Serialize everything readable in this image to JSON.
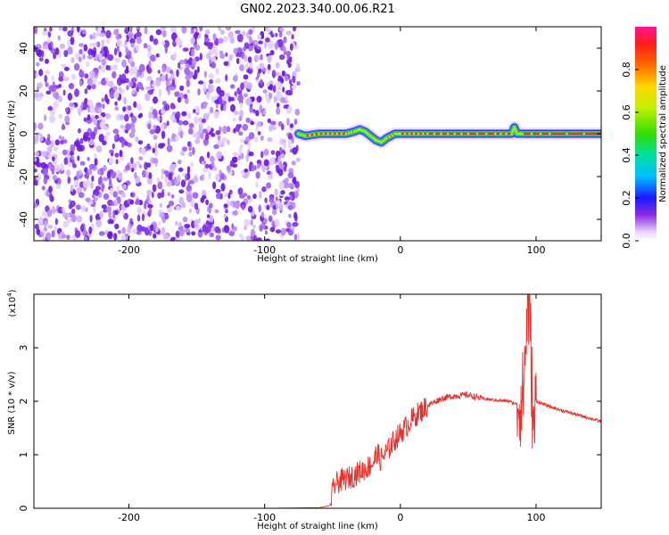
{
  "title": "GN02.2023.340.00.06.R21",
  "chart_data": [
    {
      "type": "heatmap",
      "xlabel": "Height of straight line (km)",
      "ylabel": "Frequency (Hz)",
      "xlim": [
        -270,
        148
      ],
      "ylim": [
        -50,
        50
      ],
      "xticks": [
        -200,
        -100,
        0,
        100
      ],
      "yticks": [
        -40,
        -20,
        0,
        20,
        40
      ],
      "grid": false,
      "noise_region": {
        "x_range": [
          -270,
          -75
        ],
        "y_range": [
          -50,
          50
        ]
      },
      "signal_trace": {
        "x": [
          -75,
          -70,
          -60,
          -50,
          -40,
          -34,
          -30,
          -26,
          -22,
          -18,
          -14,
          -10,
          -4,
          0,
          10,
          20,
          35,
          50,
          70,
          82,
          84,
          86,
          90,
          110,
          148
        ],
        "frequency_hz": [
          0,
          -1,
          0,
          0,
          0,
          1,
          2,
          1,
          -1,
          -3,
          -4,
          -2,
          0,
          0,
          0,
          0,
          0,
          0,
          0,
          0,
          3,
          0,
          0,
          0,
          0
        ]
      },
      "colorbar": {
        "label": "Normalized spectral amplitude",
        "range": [
          0.0,
          1.0
        ],
        "ticks": [
          "0.0",
          "0.2",
          "0.4",
          "0.6",
          "0.8"
        ]
      }
    },
    {
      "type": "line",
      "xlabel": "Height of straight line (km)",
      "ylabel": "SNR (10 * v/v)",
      "y_scale_label": "(x10",
      "y_scale_exp": "4",
      "xlim": [
        -270,
        148
      ],
      "ylim": [
        0,
        4
      ],
      "xticks": [
        -200,
        -100,
        0,
        100
      ],
      "yticks": [
        0,
        1,
        2,
        3
      ],
      "color": "#e8302a",
      "series": [
        {
          "x": [
            -270,
            -200,
            -100,
            -60,
            -52,
            -50,
            -48,
            -45,
            -40,
            -35,
            -30,
            -25,
            -20,
            -17,
            -15,
            -10,
            -5,
            0,
            10,
            20,
            30,
            40,
            50,
            60,
            70,
            80,
            85,
            90,
            92,
            94,
            96,
            98,
            100,
            110,
            120,
            130,
            148
          ],
          "y": [
            0.0,
            0.0,
            0.0,
            0.01,
            0.05,
            0.3,
            0.45,
            0.5,
            0.55,
            0.6,
            0.68,
            0.75,
            0.85,
            1.05,
            0.9,
            1.05,
            1.25,
            1.4,
            1.7,
            1.92,
            2.05,
            2.1,
            2.12,
            2.05,
            2.02,
            2.0,
            1.95,
            2.05,
            2.8,
            4.0,
            3.1,
            1.3,
            2.0,
            1.9,
            1.82,
            1.75,
            1.62
          ]
        }
      ]
    }
  ]
}
